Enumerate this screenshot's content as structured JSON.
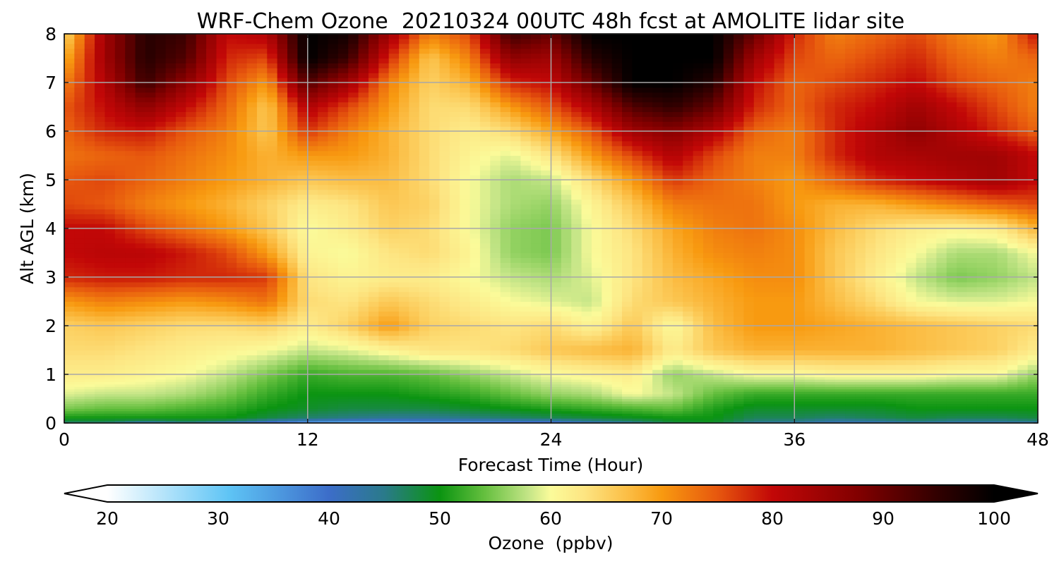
{
  "chart_data": {
    "type": "heatmap",
    "title": "WRF-Chem Ozone  20210324 00UTC 48h fcst at AMOLITE lidar site",
    "xlabel": "Forecast Time (Hour)",
    "ylabel": "Alt AGL (km)",
    "xlim": [
      0,
      48
    ],
    "ylim": [
      0,
      8
    ],
    "x_ticks": [
      "0",
      "12",
      "24",
      "36",
      "48"
    ],
    "y_ticks": [
      "0",
      "1",
      "2",
      "3",
      "4",
      "5",
      "6",
      "7",
      "8"
    ],
    "grid": true,
    "colorbar": {
      "label": "Ozone  (ppbv)",
      "min": 20,
      "max": 100,
      "ticks": [
        "20",
        "30",
        "40",
        "50",
        "60",
        "70",
        "80",
        "90",
        "100"
      ],
      "extend": "both",
      "stops": [
        {
          "v": 20,
          "c": "#ffffff"
        },
        {
          "v": 31,
          "c": "#5ec4f5"
        },
        {
          "v": 40,
          "c": "#3c6dc9"
        },
        {
          "v": 45,
          "c": "#2a7a8a"
        },
        {
          "v": 50,
          "c": "#0b9411"
        },
        {
          "v": 54,
          "c": "#64bf3e"
        },
        {
          "v": 58,
          "c": "#c4e587"
        },
        {
          "v": 60,
          "c": "#fbfb9a"
        },
        {
          "v": 63,
          "c": "#fde582"
        },
        {
          "v": 67,
          "c": "#fbbd44"
        },
        {
          "v": 70,
          "c": "#f89a10"
        },
        {
          "v": 75,
          "c": "#e7580e"
        },
        {
          "v": 80,
          "c": "#c20707"
        },
        {
          "v": 88,
          "c": "#7f0000"
        },
        {
          "v": 95,
          "c": "#300000"
        },
        {
          "v": 100,
          "c": "#000000"
        }
      ]
    },
    "x": [
      0,
      2,
      4,
      6,
      8,
      10,
      12,
      14,
      16,
      18,
      20,
      22,
      24,
      26,
      28,
      30,
      32,
      34,
      36,
      38,
      40,
      42,
      44,
      46,
      48
    ],
    "y": [
      0,
      0.1,
      0.3,
      0.6,
      1,
      1.5,
      2,
      2.5,
      3,
      3.5,
      4,
      4.5,
      5,
      5.5,
      6,
      6.5,
      7,
      7.5,
      8
    ],
    "z": [
      [
        46,
        46,
        42,
        45,
        42,
        38,
        34,
        32,
        33,
        35,
        35,
        37,
        38,
        41,
        44,
        48,
        49,
        44,
        43,
        41,
        41,
        43,
        42,
        42,
        43
      ],
      [
        50,
        50,
        50,
        50,
        50,
        48,
        46,
        45,
        44,
        44,
        45,
        46,
        47,
        48,
        49,
        50,
        50,
        47,
        47,
        46,
        47,
        48,
        47,
        47,
        48
      ],
      [
        55,
        54,
        54,
        53,
        52,
        50,
        49,
        48,
        48,
        48,
        49,
        50,
        51,
        52,
        53,
        54,
        51,
        49,
        49,
        49,
        49,
        50,
        50,
        50,
        50
      ],
      [
        59,
        58,
        58,
        57,
        55,
        52,
        50,
        50,
        50,
        51,
        52,
        54,
        56,
        57,
        60,
        58,
        54,
        52,
        52,
        52,
        52,
        52,
        52,
        52,
        52
      ],
      [
        62,
        62,
        61,
        60,
        58,
        55,
        52,
        53,
        53,
        54,
        56,
        58,
        60,
        61,
        62,
        56,
        58,
        60,
        60,
        61,
        61,
        61,
        60,
        60,
        56
      ],
      [
        64,
        64,
        63,
        62,
        61,
        60,
        58,
        59,
        61,
        63,
        63,
        64,
        66,
        67,
        68,
        62,
        66,
        68,
        68,
        68,
        68,
        67,
        66,
        65,
        62
      ],
      [
        65,
        66,
        65,
        64,
        64,
        65,
        62,
        65,
        70,
        65,
        64,
        63,
        64,
        61,
        66,
        60,
        67,
        70,
        70,
        69,
        68,
        67,
        66,
        65,
        64
      ],
      [
        70,
        72,
        71,
        70,
        71,
        73,
        64,
        63,
        66,
        64,
        62,
        60,
        59,
        58,
        64,
        66,
        68,
        70,
        70,
        67,
        64,
        60,
        59,
        59,
        60
      ],
      [
        78,
        79,
        79,
        78,
        78,
        77,
        63,
        61,
        62,
        62,
        60,
        58,
        57,
        59,
        63,
        67,
        69,
        71,
        71,
        66,
        62,
        58,
        55,
        56,
        58
      ],
      [
        80,
        81,
        81,
        79,
        76,
        70,
        61,
        60,
        63,
        64,
        61,
        56,
        55,
        60,
        63,
        68,
        71,
        72,
        71,
        66,
        63,
        60,
        57,
        57,
        60
      ],
      [
        80,
        80,
        76,
        73,
        70,
        66,
        60,
        62,
        65,
        64,
        60,
        56,
        55,
        60,
        64,
        69,
        72,
        73,
        71,
        67,
        64,
        62,
        61,
        62,
        68
      ],
      [
        76,
        75,
        72,
        70,
        68,
        65,
        62,
        63,
        66,
        65,
        60,
        57,
        56,
        61,
        66,
        72,
        73,
        73,
        70,
        68,
        68,
        70,
        72,
        74,
        76
      ],
      [
        75,
        76,
        74,
        72,
        70,
        68,
        66,
        67,
        67,
        64,
        60,
        57,
        58,
        64,
        70,
        77,
        74,
        72,
        70,
        74,
        78,
        80,
        82,
        84,
        80
      ],
      [
        73,
        74,
        75,
        73,
        71,
        68,
        70,
        70,
        68,
        64,
        61,
        59,
        63,
        70,
        76,
        82,
        76,
        72,
        72,
        78,
        82,
        83,
        84,
        84,
        80
      ],
      [
        74,
        78,
        79,
        75,
        72,
        66,
        77,
        72,
        68,
        64,
        62,
        64,
        69,
        75,
        84,
        87,
        82,
        74,
        72,
        78,
        82,
        86,
        82,
        78,
        74
      ],
      [
        75,
        80,
        86,
        80,
        74,
        66,
        82,
        76,
        70,
        64,
        64,
        70,
        75,
        82,
        92,
        95,
        90,
        78,
        74,
        78,
        80,
        84,
        80,
        76,
        72
      ],
      [
        72,
        82,
        94,
        86,
        76,
        70,
        92,
        84,
        72,
        65,
        68,
        78,
        80,
        90,
        100,
        100,
        96,
        80,
        74,
        76,
        78,
        80,
        76,
        74,
        72
      ],
      [
        68,
        84,
        96,
        92,
        78,
        76,
        100,
        94,
        78,
        66,
        72,
        86,
        84,
        96,
        100,
        100,
        100,
        84,
        76,
        74,
        76,
        78,
        74,
        72,
        74
      ],
      [
        64,
        84,
        96,
        94,
        80,
        82,
        100,
        98,
        84,
        72,
        76,
        94,
        90,
        100,
        100,
        100,
        100,
        90,
        78,
        72,
        74,
        76,
        72,
        70,
        80
      ]
    ]
  }
}
